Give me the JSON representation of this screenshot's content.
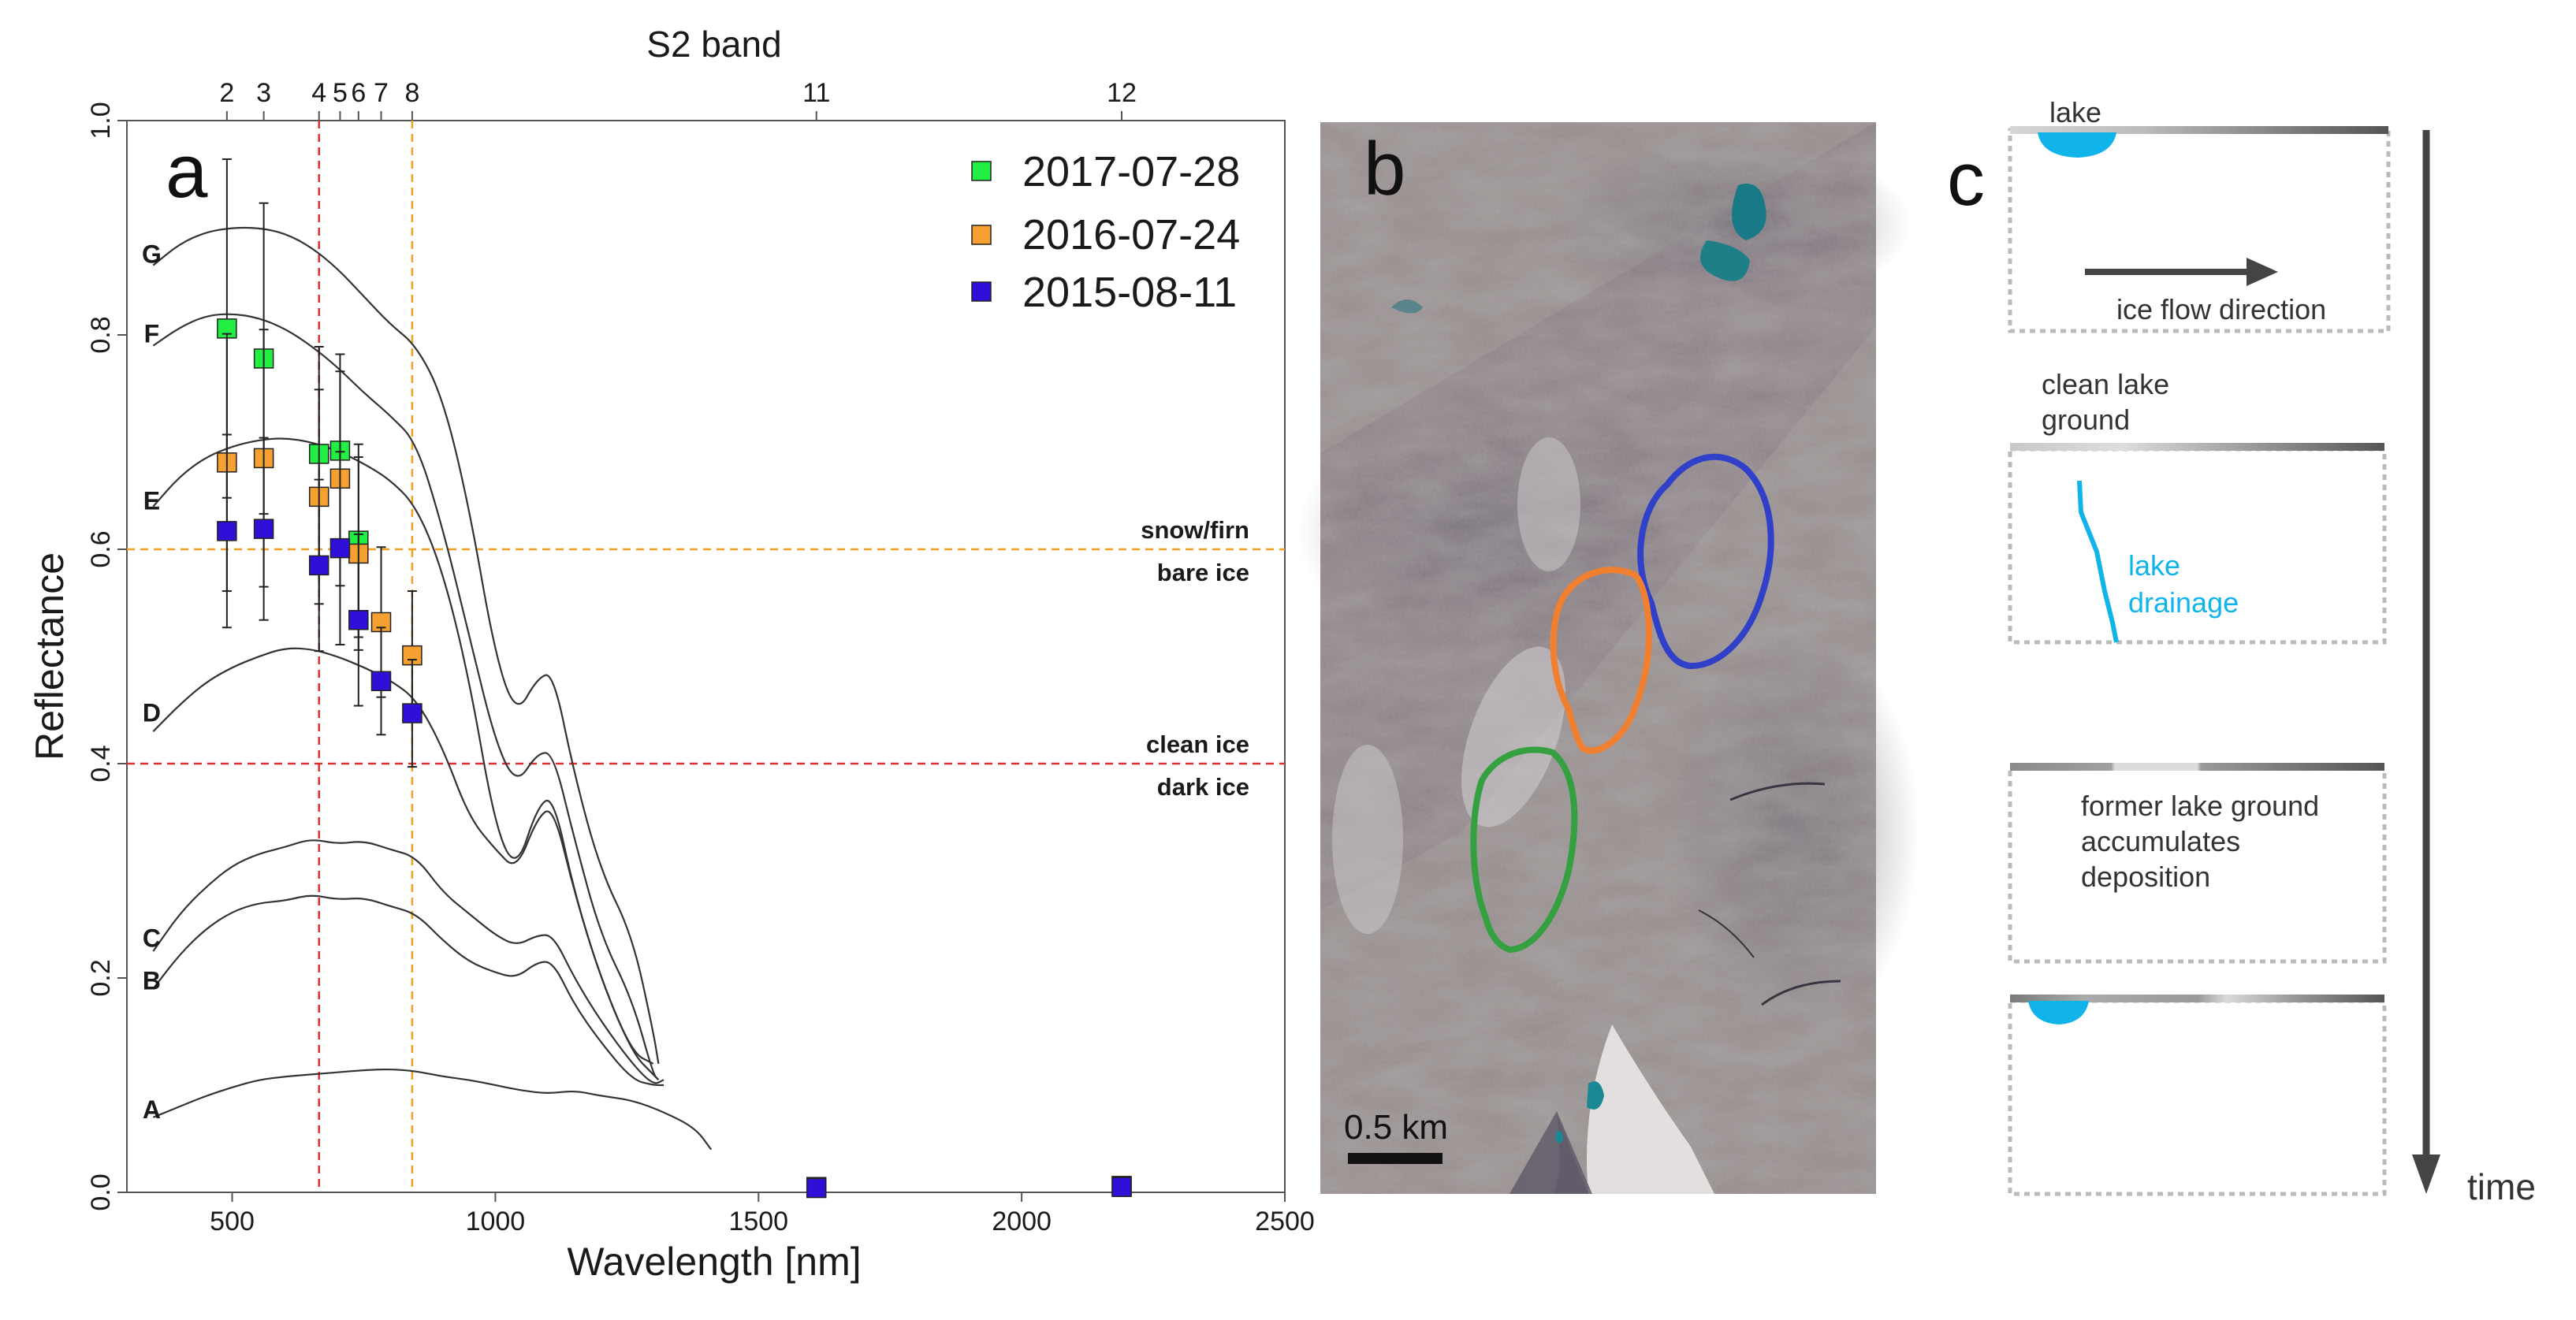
{
  "chart_data": [
    {
      "type": "scatter",
      "panel_label": "a",
      "top_axis_title": "S2 band",
      "xlabel": "Wavelength [nm]",
      "ylabel": "Reflectance",
      "xlim": [
        300,
        2500
      ],
      "ylim": [
        0.0,
        1.0
      ],
      "x_ticks": [
        500,
        1000,
        1500,
        2000,
        2500
      ],
      "y_ticks": [
        "0.0",
        "0.2",
        "0.4",
        "0.6",
        "0.8",
        "1.0"
      ],
      "top_ticks": [
        {
          "label": "2",
          "x": 490
        },
        {
          "label": "3",
          "x": 560
        },
        {
          "label": "4",
          "x": 665
        },
        {
          "label": "5",
          "x": 705
        },
        {
          "label": "6",
          "x": 740
        },
        {
          "label": "7",
          "x": 783
        },
        {
          "label": "8",
          "x": 842
        },
        {
          "label": "11",
          "x": 1610
        },
        {
          "label": "12",
          "x": 2190
        }
      ],
      "grid": false,
      "legend_position": "top-right",
      "series": [
        {
          "name": "2017-07-28",
          "color": "#22ee44",
          "x": [
            490,
            560,
            665,
            705,
            740
          ],
          "y": [
            0.806,
            0.778,
            0.689,
            0.692,
            0.608
          ],
          "err": [
            0.158,
            0.145,
            0.1,
            0.09,
            0.09
          ]
        },
        {
          "name": "2016-07-24",
          "color": "#f5a030",
          "x": [
            490,
            560,
            665,
            705,
            740,
            783,
            842,
            1610,
            2190
          ],
          "y": [
            0.681,
            0.685,
            0.649,
            0.666,
            0.596,
            0.532,
            0.501,
            0.005,
            0.006
          ],
          "err": [
            0.12,
            0.12,
            0.1,
            0.1,
            0.09,
            0.07,
            0.06,
            0,
            0
          ]
        },
        {
          "name": "2015-08-11",
          "color": "#3010d8",
          "x": [
            490,
            560,
            665,
            705,
            740,
            783,
            842,
            1610,
            2190
          ],
          "y": [
            0.617,
            0.619,
            0.585,
            0.601,
            0.534,
            0.477,
            0.447,
            0.004,
            0.005
          ],
          "err": [
            0.09,
            0.085,
            0.08,
            0.09,
            0.08,
            0.05,
            0.05,
            0,
            0
          ]
        }
      ],
      "vertical_lines": [
        {
          "x": 665,
          "color": "#d93030"
        },
        {
          "x": 842,
          "color": "#f0a020"
        }
      ],
      "thresholds": [
        {
          "y": 0.6,
          "color": "#f0a020",
          "label_above": "snow/firn",
          "label_below": "bare ice"
        },
        {
          "y": 0.4,
          "color": "#d93030",
          "label_above": "clean ice",
          "label_below": "dark ice"
        }
      ],
      "reference_curves": [
        {
          "label": "G",
          "label_at": [
            0.876
          ],
          "points": [
            [
              350,
              0.865
            ],
            [
              400,
              0.885
            ],
            [
              450,
              0.896
            ],
            [
              500,
              0.9
            ],
            [
              550,
              0.9
            ],
            [
              600,
              0.895
            ],
            [
              650,
              0.882
            ],
            [
              700,
              0.862
            ],
            [
              750,
              0.836
            ],
            [
              800,
              0.81
            ],
            [
              850,
              0.79
            ],
            [
              900,
              0.742
            ],
            [
              950,
              0.64
            ],
            [
              1000,
              0.5
            ],
            [
              1040,
              0.445
            ],
            [
              1080,
              0.48
            ],
            [
              1110,
              0.485
            ],
            [
              1150,
              0.39
            ],
            [
              1200,
              0.3
            ],
            [
              1260,
              0.24
            ],
            [
              1300,
              0.15
            ],
            [
              1310,
              0.12
            ]
          ]
        },
        {
          "label": "F",
          "label_at": [
            0.802
          ],
          "points": [
            [
              350,
              0.79
            ],
            [
              400,
              0.807
            ],
            [
              450,
              0.818
            ],
            [
              500,
              0.82
            ],
            [
              550,
              0.816
            ],
            [
              600,
              0.806
            ],
            [
              650,
              0.79
            ],
            [
              700,
              0.77
            ],
            [
              750,
              0.746
            ],
            [
              800,
              0.725
            ],
            [
              850,
              0.7
            ],
            [
              900,
              0.62
            ],
            [
              950,
              0.52
            ],
            [
              1000,
              0.42
            ],
            [
              1040,
              0.38
            ],
            [
              1080,
              0.41
            ],
            [
              1110,
              0.41
            ],
            [
              1150,
              0.33
            ],
            [
              1200,
              0.24
            ],
            [
              1260,
              0.18
            ],
            [
              1300,
              0.11
            ],
            [
              1310,
              0.105
            ]
          ]
        },
        {
          "label": "E",
          "label_at": [
            0.646
          ],
          "points": [
            [
              350,
              0.64
            ],
            [
              400,
              0.668
            ],
            [
              450,
              0.686
            ],
            [
              500,
              0.696
            ],
            [
              550,
              0.702
            ],
            [
              600,
              0.704
            ],
            [
              650,
              0.7
            ],
            [
              700,
              0.692
            ],
            [
              750,
              0.68
            ],
            [
              800,
              0.665
            ],
            [
              850,
              0.64
            ],
            [
              900,
              0.58
            ],
            [
              950,
              0.48
            ],
            [
              1000,
              0.34
            ],
            [
              1040,
              0.3
            ],
            [
              1080,
              0.36
            ],
            [
              1110,
              0.37
            ],
            [
              1150,
              0.28
            ],
            [
              1200,
              0.2
            ],
            [
              1260,
              0.13
            ],
            [
              1300,
              0.11
            ],
            [
              1310,
              0.105
            ]
          ]
        },
        {
          "label": "D",
          "label_at": [
            0.448
          ],
          "points": [
            [
              350,
              0.43
            ],
            [
              400,
              0.455
            ],
            [
              450,
              0.476
            ],
            [
              500,
              0.49
            ],
            [
              550,
              0.5
            ],
            [
              600,
              0.508
            ],
            [
              650,
              0.507
            ],
            [
              700,
              0.5
            ],
            [
              750,
              0.49
            ],
            [
              800,
              0.478
            ],
            [
              850,
              0.46
            ],
            [
              900,
              0.415
            ],
            [
              950,
              0.35
            ],
            [
              1000,
              0.32
            ],
            [
              1040,
              0.3
            ],
            [
              1080,
              0.35
            ],
            [
              1110,
              0.36
            ],
            [
              1150,
              0.28
            ],
            [
              1200,
              0.2
            ],
            [
              1260,
              0.13
            ],
            [
              1300,
              0.12
            ]
          ]
        },
        {
          "label": "C",
          "label_at": [
            0.238
          ],
          "points": [
            [
              350,
              0.225
            ],
            [
              400,
              0.26
            ],
            [
              450,
              0.285
            ],
            [
              500,
              0.305
            ],
            [
              550,
              0.316
            ],
            [
              600,
              0.322
            ],
            [
              650,
              0.33
            ],
            [
              700,
              0.325
            ],
            [
              750,
              0.328
            ],
            [
              800,
              0.32
            ],
            [
              850,
              0.313
            ],
            [
              900,
              0.28
            ],
            [
              950,
              0.26
            ],
            [
              1000,
              0.24
            ],
            [
              1040,
              0.23
            ],
            [
              1080,
              0.24
            ],
            [
              1110,
              0.24
            ],
            [
              1150,
              0.2
            ],
            [
              1200,
              0.16
            ],
            [
              1260,
              0.12
            ],
            [
              1300,
              0.1
            ],
            [
              1320,
              0.105
            ]
          ]
        },
        {
          "label": "B",
          "label_at": [
            0.198
          ],
          "points": [
            [
              350,
              0.19
            ],
            [
              400,
              0.222
            ],
            [
              450,
              0.246
            ],
            [
              500,
              0.262
            ],
            [
              550,
              0.27
            ],
            [
              600,
              0.272
            ],
            [
              650,
              0.278
            ],
            [
              700,
              0.273
            ],
            [
              750,
              0.275
            ],
            [
              800,
              0.267
            ],
            [
              850,
              0.26
            ],
            [
              900,
              0.235
            ],
            [
              950,
              0.215
            ],
            [
              1000,
              0.205
            ],
            [
              1040,
              0.2
            ],
            [
              1080,
              0.215
            ],
            [
              1110,
              0.215
            ],
            [
              1150,
              0.175
            ],
            [
              1200,
              0.14
            ],
            [
              1260,
              0.105
            ],
            [
              1300,
              0.1
            ],
            [
              1320,
              0.1
            ]
          ]
        },
        {
          "label": "A",
          "label_at": [
            0.078
          ],
          "points": [
            [
              350,
              0.07
            ],
            [
              400,
              0.08
            ],
            [
              450,
              0.09
            ],
            [
              500,
              0.098
            ],
            [
              550,
              0.105
            ],
            [
              600,
              0.108
            ],
            [
              650,
              0.11
            ],
            [
              700,
              0.112
            ],
            [
              750,
              0.114
            ],
            [
              800,
              0.115
            ],
            [
              850,
              0.113
            ],
            [
              900,
              0.108
            ],
            [
              950,
              0.105
            ],
            [
              1000,
              0.1
            ],
            [
              1050,
              0.095
            ],
            [
              1100,
              0.092
            ],
            [
              1150,
              0.095
            ],
            [
              1200,
              0.09
            ],
            [
              1260,
              0.086
            ],
            [
              1320,
              0.075
            ],
            [
              1380,
              0.06
            ],
            [
              1410,
              0.04
            ]
          ]
        }
      ]
    }
  ],
  "panel_b": {
    "label": "b",
    "scale_bar_label": "0.5 km",
    "outline_colors": {
      "blue": "#3040c8",
      "orange": "#f08030",
      "green": "#34a040"
    }
  },
  "panel_c": {
    "label": "c",
    "step1_label": "lake",
    "step1_arrow_label": "ice flow direction",
    "step2_label_line1": "clean lake",
    "step2_label_line2": "ground",
    "step2_drain_line1": "lake",
    "step2_drain_line2": "drainage",
    "step3_line1": "former lake ground",
    "step3_line2": "accumulates",
    "step3_line3": "deposition",
    "time_label": "time",
    "lake_color": "#10b4ea"
  }
}
